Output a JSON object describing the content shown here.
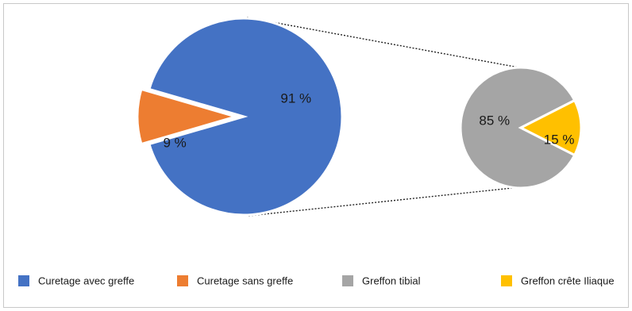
{
  "chart_data": {
    "type": "pie",
    "subtype": "pie-of-pie",
    "main_pie": {
      "slices": [
        {
          "label": "Curetage avec greffe",
          "value": 91,
          "value_label": "91 %",
          "color": "#4472C4"
        },
        {
          "label": "Curetage sans greffe",
          "value": 9,
          "value_label": "9 %",
          "color": "#ED7D31"
        }
      ]
    },
    "secondary_pie": {
      "breaks_down": "Curetage avec greffe",
      "slices": [
        {
          "label": "Greffon tibial",
          "value": 85,
          "value_label": "85 %",
          "color": "#A5A5A5"
        },
        {
          "label": "Greffon crête Iliaque",
          "value": 15,
          "value_label": "15 %",
          "color": "#FFC000"
        }
      ]
    },
    "legend": {
      "placement": "bottom",
      "entries": [
        {
          "label": "Curetage avec greffe",
          "color": "#4472C4"
        },
        {
          "label": "Curetage sans greffe",
          "color": "#ED7D31"
        },
        {
          "label": "Greffon tibial",
          "color": "#A5A5A5"
        },
        {
          "label": "Greffon crête Iliaque",
          "color": "#FFC000"
        }
      ]
    },
    "title": "",
    "connector_lines": "dotted"
  }
}
